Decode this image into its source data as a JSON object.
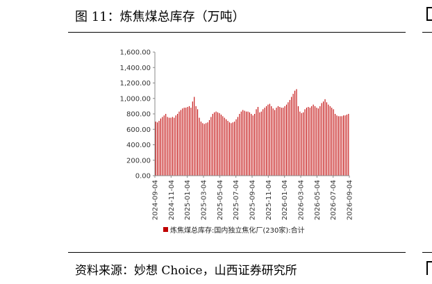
{
  "figure": {
    "title": "图 11：炼焦煤总库存（万吨）",
    "source": "资料来源：妙想 Choice，山西证券研究所"
  },
  "colors": {
    "bar": "#c00000",
    "axis": "#888888",
    "grid": "#d9d9d9"
  },
  "chart_data": {
    "type": "bar",
    "title": "",
    "xlabel": "",
    "ylabel": "",
    "ylim": [
      0,
      1600
    ],
    "yticks": [
      "0.00",
      "200.00",
      "400.00",
      "600.00",
      "800.00",
      "1,000.00",
      "1,200.00",
      "1,400.00",
      "1,600.00"
    ],
    "xtick_labels": [
      "2024-09-04",
      "2024-11-04",
      "2025-01-04",
      "2025-03-04",
      "2025-05-04",
      "2025-07-04",
      "2025-09-04",
      "2025-11-04",
      "2026-01-04",
      "2026-03-04",
      "2026-05-04",
      "2026-07-04",
      "2026-09-04"
    ],
    "grid": false,
    "legend_position": "bottom",
    "series": [
      {
        "name": "炼焦煤总库存:国内独立焦化厂(230家):合计",
        "values": [
          700,
          690,
          710,
          740,
          760,
          780,
          800,
          760,
          750,
          750,
          760,
          750,
          780,
          800,
          830,
          850,
          870,
          880,
          880,
          890,
          900,
          880,
          960,
          1020,
          900,
          860,
          750,
          700,
          680,
          670,
          680,
          690,
          720,
          760,
          800,
          820,
          830,
          820,
          810,
          790,
          770,
          750,
          730,
          710,
          690,
          680,
          690,
          700,
          730,
          760,
          800,
          830,
          850,
          840,
          830,
          830,
          820,
          800,
          780,
          800,
          860,
          890,
          820,
          830,
          860,
          880,
          900,
          920,
          930,
          900,
          870,
          850,
          880,
          900,
          890,
          880,
          880,
          900,
          920,
          950,
          980,
          1020,
          1060,
          1100,
          1120,
          900,
          830,
          810,
          820,
          860,
          880,
          890,
          880,
          900,
          920,
          900,
          880,
          870,
          900,
          940,
          960,
          990,
          950,
          920,
          900,
          880,
          860,
          800,
          780,
          770,
          770,
          770,
          780,
          780,
          790,
          800
        ]
      }
    ]
  }
}
